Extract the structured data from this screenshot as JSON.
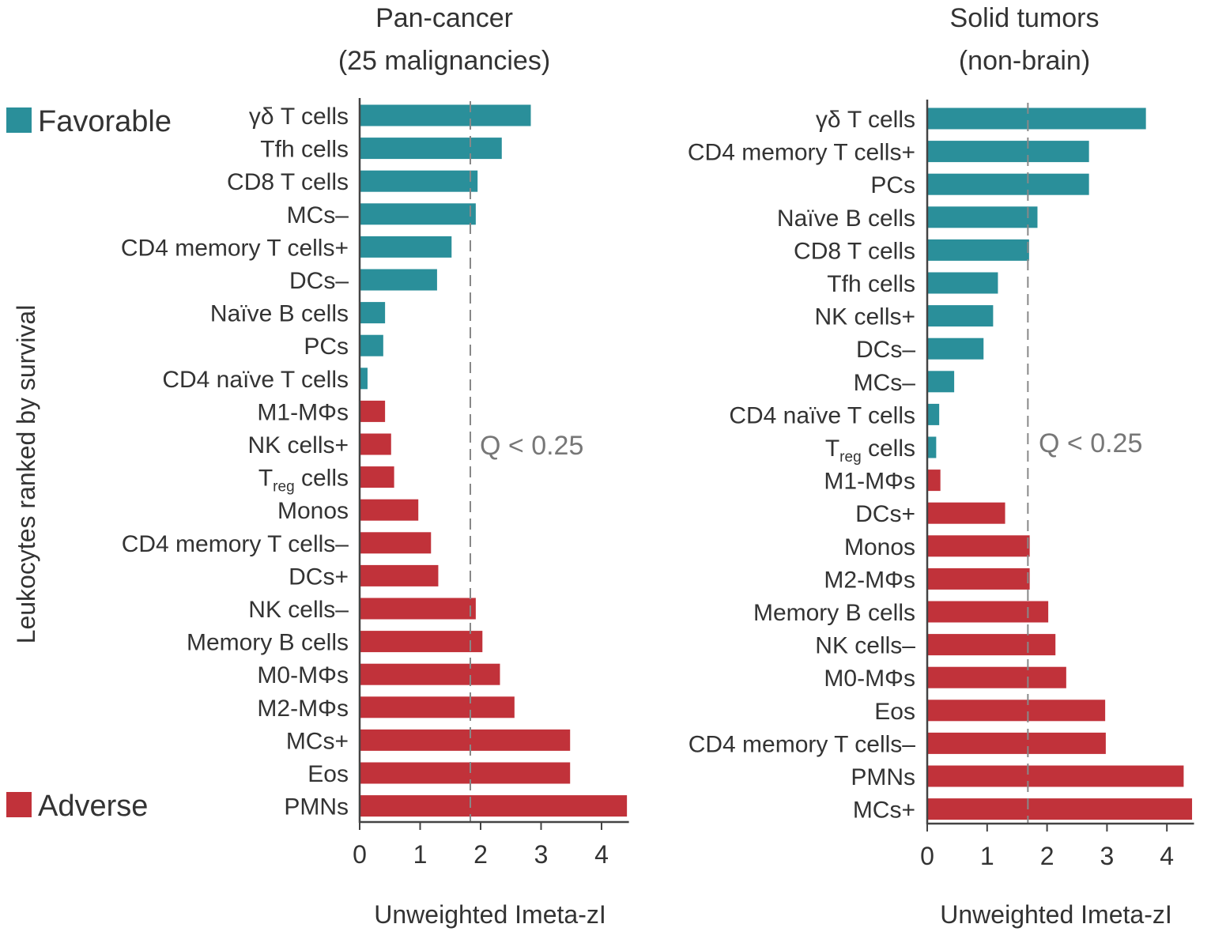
{
  "y_axis_label": "Leukocytes ranked by survival",
  "legend": {
    "favorable_label": "Favorable",
    "adverse_label": "Adverse",
    "favorable_color": "#2a8f9a",
    "adverse_color": "#c1323a"
  },
  "chart_data": [
    {
      "type": "bar",
      "orientation": "horizontal",
      "title": "Pan-cancer",
      "subtitle": "(25 malignancies)",
      "xlabel": "Unweighted Imeta-zI",
      "xlim": [
        0,
        4.4
      ],
      "xticks": [
        "0",
        "1",
        "2",
        "3",
        "4"
      ],
      "threshold": {
        "value": 1.83,
        "label": "Q < 0.25"
      },
      "categories": [
        "γδ T cells",
        "Tfh cells",
        "CD8 T cells",
        "MCs–",
        "CD4 memory T cells+",
        "DCs–",
        "Naïve B cells",
        "PCs",
        "CD4 naïve T cells",
        "M1-MΦs",
        "NK cells+",
        "Treg cells",
        "Monos",
        "CD4 memory T cells–",
        "DCs+",
        "NK cells–",
        "Memory B cells",
        "M0-MΦs",
        "M2-MΦs",
        "MCs+",
        "Eos",
        "PMNs"
      ],
      "values": [
        2.83,
        2.35,
        1.95,
        1.92,
        1.52,
        1.28,
        0.42,
        0.39,
        0.13,
        0.42,
        0.52,
        0.57,
        0.97,
        1.18,
        1.3,
        1.92,
        2.03,
        2.32,
        2.56,
        3.48,
        3.48,
        4.42
      ],
      "effect": [
        "Favorable",
        "Favorable",
        "Favorable",
        "Favorable",
        "Favorable",
        "Favorable",
        "Favorable",
        "Favorable",
        "Favorable",
        "Adverse",
        "Adverse",
        "Adverse",
        "Adverse",
        "Adverse",
        "Adverse",
        "Adverse",
        "Adverse",
        "Adverse",
        "Adverse",
        "Adverse",
        "Adverse",
        "Adverse"
      ]
    },
    {
      "type": "bar",
      "orientation": "horizontal",
      "title": "Solid tumors",
      "subtitle": "(non-brain)",
      "xlabel": "Unweighted Imeta-zI",
      "xlim": [
        0,
        4.4
      ],
      "xticks": [
        "0",
        "1",
        "2",
        "3",
        "4"
      ],
      "threshold": {
        "value": 1.68,
        "label": "Q < 0.25"
      },
      "categories": [
        "γδ T cells",
        "CD4 memory T cells+",
        "PCs",
        "Naïve B cells",
        "CD8 T cells",
        "Tfh cells",
        "NK cells+",
        "DCs–",
        "MCs–",
        "CD4 naïve T cells",
        "Treg cells",
        "M1-MΦs",
        "DCs+",
        "Monos",
        "M2-MΦs",
        "Memory B cells",
        "NK cells–",
        "M0-MΦs",
        "Eos",
        "CD4 memory T cells–",
        "PMNs",
        "MCs+"
      ],
      "values": [
        3.65,
        2.7,
        2.7,
        1.84,
        1.7,
        1.18,
        1.1,
        0.94,
        0.45,
        0.2,
        0.15,
        0.22,
        1.3,
        1.71,
        1.71,
        2.02,
        2.14,
        2.32,
        2.97,
        2.98,
        4.28,
        4.42
      ],
      "effect": [
        "Favorable",
        "Favorable",
        "Favorable",
        "Favorable",
        "Favorable",
        "Favorable",
        "Favorable",
        "Favorable",
        "Favorable",
        "Favorable",
        "Favorable",
        "Adverse",
        "Adverse",
        "Adverse",
        "Adverse",
        "Adverse",
        "Adverse",
        "Adverse",
        "Adverse",
        "Adverse",
        "Adverse",
        "Adverse"
      ]
    }
  ]
}
